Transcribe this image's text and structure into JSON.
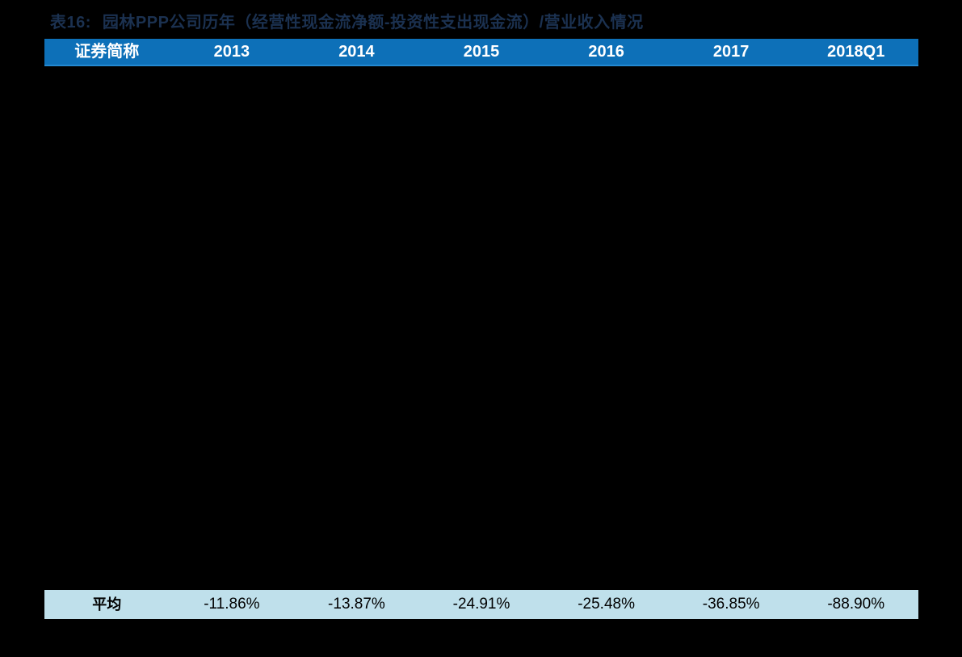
{
  "title": {
    "prefix": "表16:",
    "text": "园林PPP公司历年（经营性现金流净额-投资性支出现金流）/营业收入情况"
  },
  "table": {
    "columns": [
      "证券简称",
      "2013",
      "2014",
      "2015",
      "2016",
      "2017",
      "2018Q1"
    ],
    "summary_row": {
      "label": "平均",
      "values": [
        "-11.86%",
        "-13.87%",
        "-24.91%",
        "-25.48%",
        "-36.85%",
        "-88.90%"
      ]
    }
  },
  "colors": {
    "page_bg": "#000000",
    "header_bg": "#0d70b8",
    "header_edge": "#2389d2",
    "header_text": "#ffffff",
    "summary_bg": "#bfe0eb",
    "summary_text": "#000000",
    "title_text": "#1b3150"
  },
  "chart_data": {
    "type": "table",
    "title": "表16: 园林PPP公司历年（经营性现金流净额-投资性支出现金流）/营业收入情况",
    "columns": [
      "证券简称",
      "2013",
      "2014",
      "2015",
      "2016",
      "2017",
      "2018Q1"
    ],
    "rows": [
      [
        "平均",
        "-11.86%",
        "-13.87%",
        "-24.91%",
        "-25.48%",
        "-36.85%",
        "-88.90%"
      ]
    ]
  }
}
